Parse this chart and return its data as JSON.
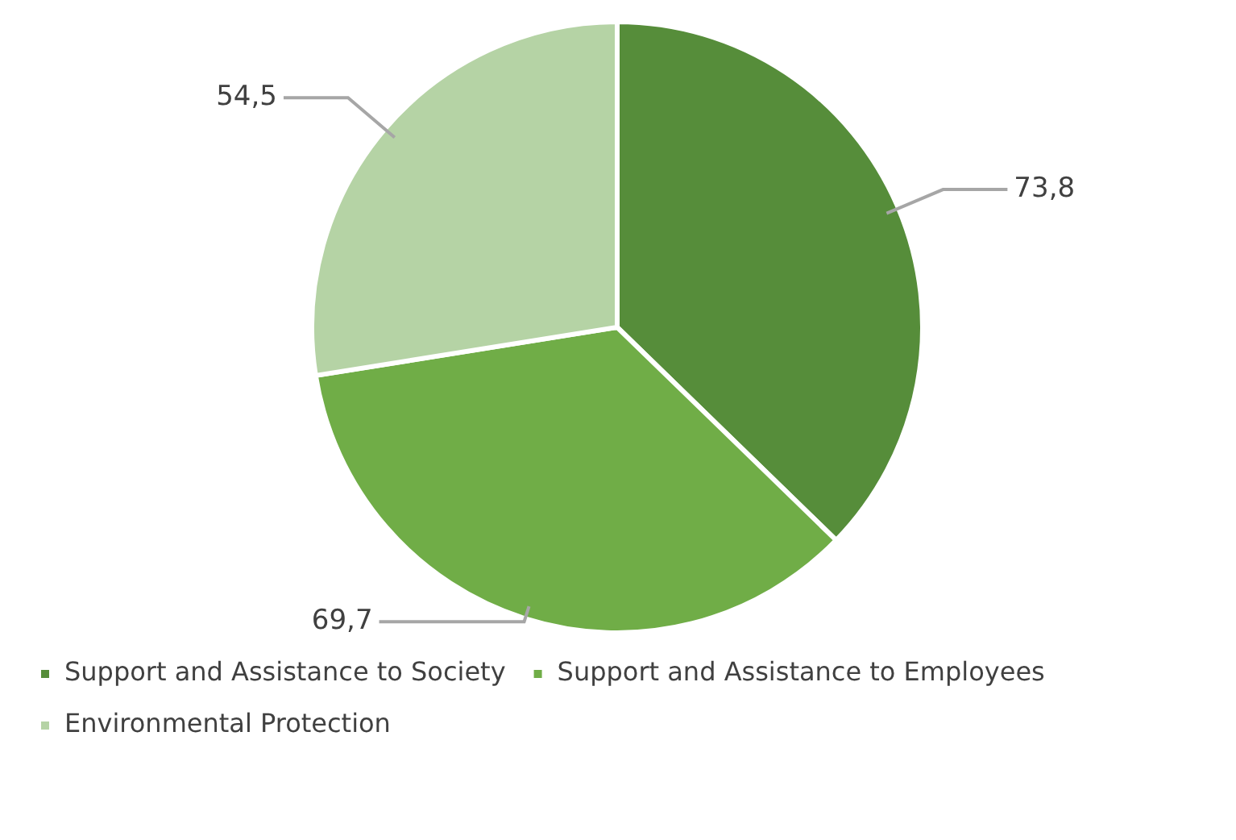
{
  "chart_data": {
    "type": "pie",
    "categories": [
      "Support and Assistance to Society",
      "Support and Assistance to Employees",
      "Environmental Protection"
    ],
    "values": [
      73.8,
      69.7,
      54.5
    ],
    "colors": [
      "#568d3a",
      "#70ad47",
      "#b5d3a5"
    ],
    "value_labels": [
      "73,8",
      "69,7",
      "54,5"
    ],
    "legend": "bottom"
  }
}
